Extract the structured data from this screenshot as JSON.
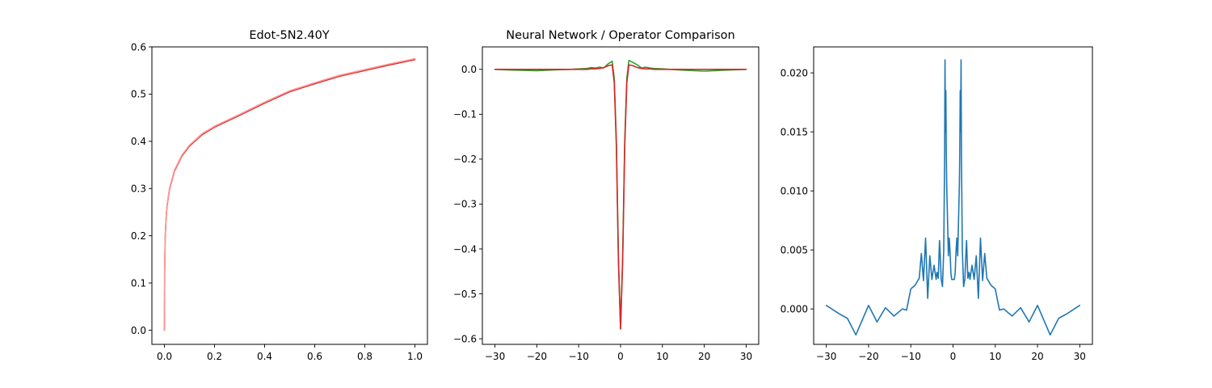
{
  "chart_data": [
    {
      "type": "line",
      "title": "Edot-5N2.40Y",
      "xlim": [
        -0.05,
        1.05
      ],
      "ylim": [
        -0.03,
        0.6
      ],
      "xticks": [
        0.0,
        0.2,
        0.4,
        0.6,
        0.8,
        1.0
      ],
      "xtick_labels": [
        "0.0",
        "0.2",
        "0.4",
        "0.6",
        "0.8",
        "1.0"
      ],
      "yticks": [
        0.0,
        0.1,
        0.2,
        0.3,
        0.4,
        0.5,
        0.6
      ],
      "ytick_labels": [
        "0.0",
        "0.1",
        "0.2",
        "0.3",
        "0.4",
        "0.5",
        "0.6"
      ],
      "series": [
        {
          "color": "#d62728",
          "x": [
            0.0,
            0.001,
            0.003,
            0.006,
            0.01,
            0.02,
            0.04,
            0.07,
            0.1,
            0.15,
            0.2,
            0.3,
            0.4,
            0.5,
            0.6,
            0.7,
            0.8,
            0.9,
            1.0
          ],
          "y": [
            0.0,
            0.127,
            0.194,
            0.231,
            0.261,
            0.298,
            0.337,
            0.369,
            0.39,
            0.414,
            0.43,
            0.455,
            0.481,
            0.505,
            0.522,
            0.538,
            0.55,
            0.562,
            0.573
          ]
        },
        {
          "color": "#ff9896",
          "x": [
            0.0,
            0.001,
            0.003,
            0.006,
            0.01,
            0.02,
            0.04,
            0.07,
            0.1,
            0.15,
            0.2,
            0.3,
            0.4,
            0.5,
            0.6,
            0.7,
            0.8,
            0.9,
            1.0
          ],
          "y": [
            0.0,
            0.129,
            0.196,
            0.233,
            0.263,
            0.3,
            0.339,
            0.371,
            0.392,
            0.416,
            0.432,
            0.457,
            0.483,
            0.507,
            0.524,
            0.54,
            0.552,
            0.564,
            0.575
          ]
        }
      ]
    },
    {
      "type": "line",
      "title": "Neural Network / Operator Comparison",
      "xlim": [
        -33,
        33
      ],
      "ylim": [
        -0.6125,
        0.05
      ],
      "xticks": [
        -30,
        -20,
        -10,
        0,
        10,
        20,
        30
      ],
      "xtick_labels": [
        "−30",
        "−20",
        "−10",
        "0",
        "10",
        "20",
        "30"
      ],
      "yticks": [
        0.0,
        -0.1,
        -0.2,
        -0.3,
        -0.4,
        -0.5,
        -0.6
      ],
      "ytick_labels": [
        "0.0",
        "−0.1",
        "−0.2",
        "−0.3",
        "−0.4",
        "−0.5",
        "−0.6"
      ],
      "series": [
        {
          "color": "#2ca02c",
          "x": [
            -30,
            -25,
            -20,
            -15,
            -12,
            -10,
            -8,
            -7,
            -6,
            -5,
            -4,
            -3,
            -2,
            -1.5,
            -1,
            -0.5,
            0,
            0.5,
            1,
            1.5,
            2,
            3,
            4,
            5,
            6,
            7,
            8,
            10,
            12,
            15,
            20,
            25,
            30
          ],
          "y": [
            0.0,
            -0.002,
            -0.003,
            -0.001,
            0.0,
            0.001,
            0.002,
            0.004,
            0.003,
            0.005,
            0.003,
            0.012,
            0.018,
            -0.02,
            -0.16,
            -0.42,
            -0.578,
            -0.42,
            -0.16,
            -0.02,
            0.02,
            0.015,
            0.01,
            0.003,
            0.005,
            0.003,
            0.002,
            0.001,
            0.0,
            -0.002,
            -0.004,
            -0.002,
            0.0
          ]
        },
        {
          "color": "#d62728",
          "x": [
            -30,
            -25,
            -20,
            -15,
            -12,
            -10,
            -8,
            -7,
            -6,
            -5,
            -4,
            -3,
            -2,
            -1.5,
            -1,
            -0.5,
            0,
            0.5,
            1,
            1.5,
            2,
            3,
            4,
            5,
            6,
            7,
            8,
            10,
            12,
            15,
            20,
            25,
            30
          ],
          "y": [
            0.0,
            0.0,
            0.0,
            0.0,
            0.0,
            0.0,
            0.0,
            0.001,
            0.001,
            0.002,
            0.004,
            0.008,
            0.01,
            -0.03,
            -0.17,
            -0.43,
            -0.578,
            -0.43,
            -0.17,
            -0.03,
            0.01,
            0.008,
            0.004,
            0.002,
            0.001,
            0.001,
            0.0,
            0.0,
            0.0,
            0.0,
            0.0,
            0.0,
            0.0
          ]
        }
      ]
    },
    {
      "type": "line",
      "title": "",
      "xlim": [
        -33,
        33
      ],
      "ylim": [
        -0.003,
        0.0222
      ],
      "xticks": [
        -30,
        -20,
        -10,
        0,
        10,
        20,
        30
      ],
      "xtick_labels": [
        "−30",
        "−20",
        "−10",
        "0",
        "10",
        "20",
        "30"
      ],
      "yticks": [
        0.0,
        0.005,
        0.01,
        0.015,
        0.02
      ],
      "ytick_labels": [
        "0.000",
        "0.005",
        "0.010",
        "0.015",
        "0.020"
      ],
      "series": [
        {
          "color": "#1f77b4",
          "x": [
            -30,
            -27,
            -25,
            -23,
            -20,
            -18,
            -16,
            -14,
            -12,
            -11,
            -10,
            -9,
            -8,
            -7.5,
            -7,
            -6.5,
            -6,
            -5.5,
            -5,
            -4.5,
            -4,
            -3.8,
            -3.5,
            -3.2,
            -3,
            -2.8,
            -2.5,
            -2.2,
            -2,
            -1.9,
            -1.8,
            -1.7,
            -1.6,
            -1.5,
            -1.3,
            -1.1,
            -0.9,
            -0.7,
            -0.5,
            -0.3,
            0,
            0.3,
            0.5,
            0.7,
            0.9,
            1.1,
            1.3,
            1.5,
            1.6,
            1.7,
            1.8,
            1.9,
            2,
            2.2,
            2.5,
            2.8,
            3,
            3.2,
            3.5,
            3.8,
            4,
            4.5,
            5,
            5.5,
            6,
            6.5,
            7,
            7.5,
            8,
            9,
            10,
            11,
            12,
            14,
            16,
            18,
            20,
            23,
            25,
            27,
            30
          ],
          "y": [
            0.0003,
            -0.0004,
            -0.0008,
            -0.0022,
            0.0003,
            -0.0011,
            0.0001,
            -0.0006,
            0.0,
            -0.0001,
            0.0017,
            0.002,
            0.0026,
            0.0047,
            0.0024,
            0.006,
            0.0009,
            0.0045,
            0.0025,
            0.0037,
            0.0025,
            0.0031,
            0.0026,
            0.0058,
            0.0043,
            0.0025,
            0.0019,
            0.005,
            0.0125,
            0.0211,
            0.015,
            0.0185,
            0.0134,
            0.0105,
            0.0075,
            0.0045,
            0.006,
            0.0048,
            0.003,
            0.0025,
            0.0025,
            0.0025,
            0.003,
            0.0048,
            0.006,
            0.0045,
            0.0075,
            0.0105,
            0.0134,
            0.0185,
            0.015,
            0.0211,
            0.0125,
            0.005,
            0.0019,
            0.0025,
            0.0043,
            0.0058,
            0.0026,
            0.0031,
            0.0025,
            0.0037,
            0.0025,
            0.0045,
            0.0009,
            0.006,
            0.0024,
            0.0047,
            0.0026,
            0.002,
            0.0017,
            -0.0001,
            0.0,
            -0.0006,
            0.0001,
            -0.0011,
            0.0003,
            -0.0022,
            -0.0008,
            -0.0004,
            0.0003
          ]
        }
      ]
    }
  ]
}
